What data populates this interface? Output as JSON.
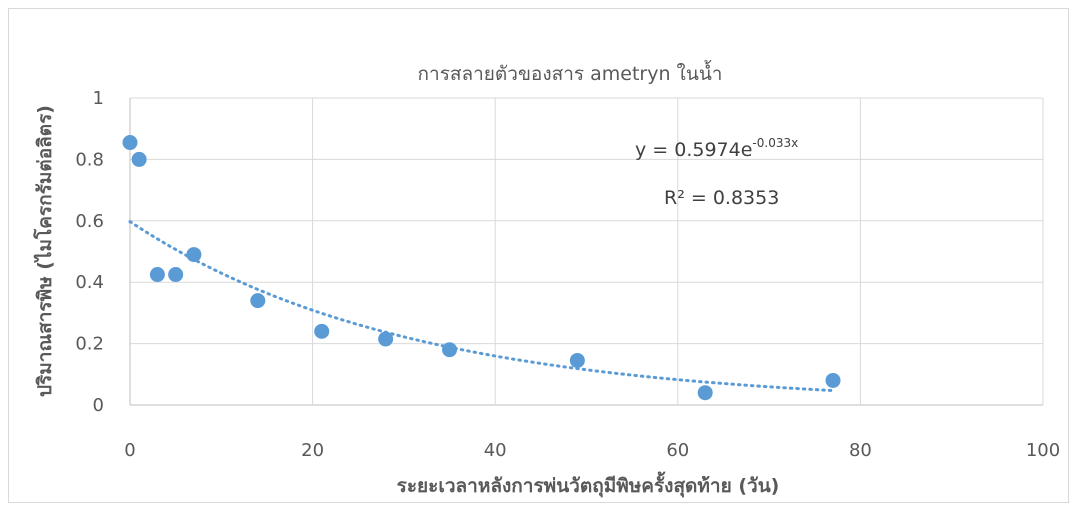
{
  "chart_data": {
    "type": "scatter",
    "title": "การสลายตัวของสาร ametryn ในน้ำ",
    "xlabel": "ระยะเวลาหลังการพ่นวัตถุมีพิษครั้งสุดท้าย (วัน)",
    "ylabel": "ปริมาณสารพิษ (ไมโครกรัมต่อลิตร)",
    "xlim": [
      0,
      100
    ],
    "ylim": [
      0,
      1
    ],
    "x_ticks": [
      0,
      20,
      40,
      60,
      80,
      100
    ],
    "y_ticks": [
      0,
      0.2,
      0.4,
      0.6,
      0.8,
      1
    ],
    "x_tick_labels": [
      "0",
      "20",
      "40",
      "60",
      "80",
      "100"
    ],
    "y_tick_labels": [
      "0",
      "0.2",
      "0.4",
      "0.6",
      "0.8",
      "1"
    ],
    "grid": true,
    "marker_color": "#5b9bd5",
    "trendline_color": "#5b9bd5",
    "points": [
      {
        "x": 0,
        "y": 0.855
      },
      {
        "x": 1,
        "y": 0.8
      },
      {
        "x": 3,
        "y": 0.425
      },
      {
        "x": 5,
        "y": 0.425
      },
      {
        "x": 7,
        "y": 0.49
      },
      {
        "x": 14,
        "y": 0.34
      },
      {
        "x": 21,
        "y": 0.24
      },
      {
        "x": 28,
        "y": 0.215
      },
      {
        "x": 35,
        "y": 0.18
      },
      {
        "x": 49,
        "y": 0.145
      },
      {
        "x": 63,
        "y": 0.04
      },
      {
        "x": 77,
        "y": 0.08
      }
    ],
    "trendline": {
      "type": "exponential",
      "a": 0.5974,
      "b": -0.033,
      "x_range": [
        0,
        77
      ],
      "equation_prefix": "y = 0.5974e",
      "equation_exponent": "-0.033x",
      "r_squared_label": "R² = 0.8353"
    }
  }
}
